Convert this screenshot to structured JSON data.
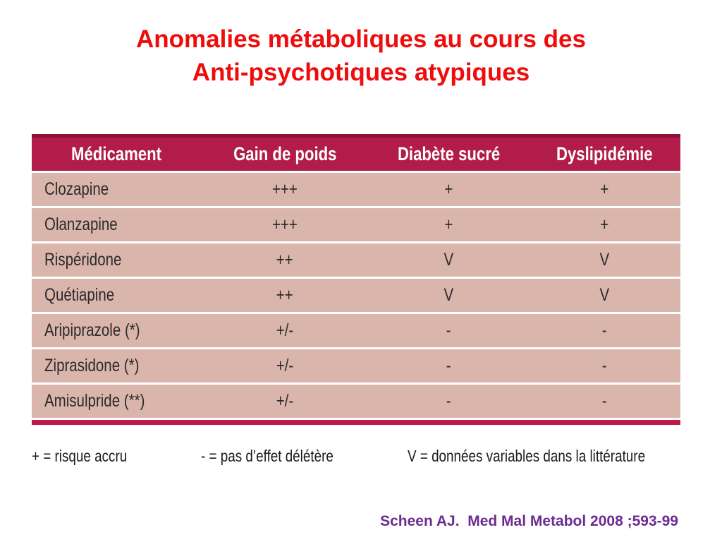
{
  "title": {
    "line1": "Anomalies métaboliques au cours des",
    "line2": "Anti-psychotiques atypiques"
  },
  "table": {
    "headers": [
      "Médicament",
      "Gain de poids",
      "Diabète sucré",
      "Dyslipidémie"
    ],
    "rows": [
      {
        "drug": "Clozapine",
        "gain_de_poids": "+++",
        "diabete_sucre": "+",
        "dyslipidemie": "+"
      },
      {
        "drug": "Olanzapine",
        "gain_de_poids": "+++",
        "diabete_sucre": "+",
        "dyslipidemie": "+"
      },
      {
        "drug": "Rispéridone",
        "gain_de_poids": "++",
        "diabete_sucre": "V",
        "dyslipidemie": "V"
      },
      {
        "drug": "Quétiapine",
        "gain_de_poids": "++",
        "diabete_sucre": "V",
        "dyslipidemie": "V"
      },
      {
        "drug": "Aripiprazole (*)",
        "gain_de_poids": "+/-",
        "diabete_sucre": "-",
        "dyslipidemie": "-"
      },
      {
        "drug": "Ziprasidone (*)",
        "gain_de_poids": "+/-",
        "diabete_sucre": "-",
        "dyslipidemie": "-"
      },
      {
        "drug": "Amisulpride (**)",
        "gain_de_poids": "+/-",
        "diabete_sucre": "-",
        "dyslipidemie": "-"
      }
    ]
  },
  "legend": {
    "plus": "+ = risque accru",
    "minus": "- = pas d’effet délétère",
    "v": "V = données variables dans la littérature"
  },
  "citation": "Scheen AJ.  Med Mal Metabol 2008 ;593-99",
  "colors": {
    "title_red": "#ee0c0c",
    "header_bg": "#b11c4a",
    "header_dark": "#8e1238",
    "row_bg": "#d9b5ab",
    "bottom_bar": "#c2184e",
    "citation_purple": "#6b2c91"
  }
}
